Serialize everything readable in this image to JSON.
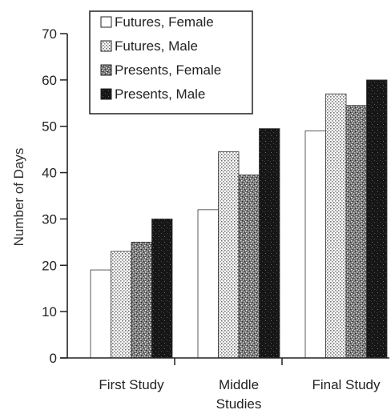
{
  "chart_data": {
    "type": "bar",
    "categories": [
      "First Study",
      "Middle Studies",
      "Final Study"
    ],
    "category_lines": [
      [
        "First Study"
      ],
      [
        "Middle",
        "Studies"
      ],
      [
        "Final Study"
      ]
    ],
    "series": [
      {
        "name": "Futures, Female",
        "values": [
          19,
          32,
          49
        ],
        "pattern": "white"
      },
      {
        "name": "Futures, Male",
        "values": [
          23,
          44.5,
          57
        ],
        "pattern": "dots"
      },
      {
        "name": "Presents, Female",
        "values": [
          25,
          39.5,
          54.5
        ],
        "pattern": "speckle"
      },
      {
        "name": "Presents, Male",
        "values": [
          30,
          49.5,
          60
        ],
        "pattern": "dark"
      }
    ],
    "title": "",
    "xlabel": "",
    "ylabel": "Number of Days",
    "ylim": [
      0,
      70
    ],
    "yticks": [
      0,
      10,
      20,
      30,
      40,
      50,
      60,
      70
    ],
    "grid": false,
    "legend_position": "top-left"
  }
}
